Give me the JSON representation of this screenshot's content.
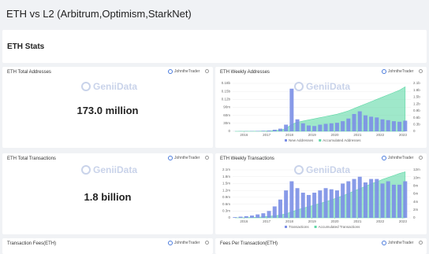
{
  "page_title": "ETH vs L2 (Arbitrum,Optimism,StarkNet)",
  "section_title": "ETH Stats",
  "watermark": "GeniiData",
  "stat_cards": [
    {
      "title": "ETH Total Addresses",
      "author": "JohntheTrader",
      "value": "173.0 million"
    },
    {
      "title": "ETH Total Transactions",
      "author": "JohntheTrader",
      "value": "1.8 billion"
    }
  ],
  "bottom_cards": [
    {
      "title": "Transaction Fees(ETH)",
      "author": "JohntheTrader"
    },
    {
      "title": "Fees Per Transaction(ETH)",
      "author": "JohntheTrader"
    }
  ],
  "chart_data": [
    {
      "type": "combo",
      "title": "ETH Weekly Addresses",
      "author": "JohntheTrader",
      "x": [
        2015.6,
        2015.85,
        2016.1,
        2016.35,
        2016.6,
        2016.85,
        2017.1,
        2017.35,
        2017.6,
        2017.85,
        2018.1,
        2018.35,
        2018.6,
        2018.85,
        2019.1,
        2019.35,
        2019.6,
        2019.85,
        2020.1,
        2020.35,
        2020.6,
        2020.85,
        2021.1,
        2021.35,
        2021.6,
        2021.85,
        2022.1,
        2022.35,
        2022.6,
        2022.85,
        2023.1
      ],
      "xlim": [
        2015.5,
        2023.35
      ],
      "xticks": [
        2016,
        2017,
        2018,
        2019,
        2020,
        2021,
        2022,
        2023
      ],
      "ylim": [
        0,
        180000000.0
      ],
      "yticks": [
        0,
        {
          "value": 30000000.0,
          "label": "30m"
        },
        {
          "value": 60000000.0,
          "label": "60m"
        },
        {
          "value": 90000000.0,
          "label": "90m"
        },
        {
          "value": 120000000.0,
          "label": "0.12b"
        },
        {
          "value": 150000000.0,
          "label": "0.15b"
        },
        {
          "value": 180000000.0,
          "label": "0.18b"
        }
      ],
      "y2lim": [
        0,
        2100000000.0
      ],
      "y2ticks": [
        0,
        {
          "value": 300000000.0,
          "label": "0.3b"
        },
        {
          "value": 600000000.0,
          "label": "0.6b"
        },
        {
          "value": 900000000.0,
          "label": "0.9b"
        },
        {
          "value": 1200000000.0,
          "label": "1.2b"
        },
        {
          "value": 1500000000.0,
          "label": "1.5b"
        },
        {
          "value": 1800000000.0,
          "label": "1.8b"
        },
        {
          "value": 2100000000.0,
          "label": "2.1b"
        }
      ],
      "series": [
        {
          "name": "New Addresses",
          "type": "bar",
          "color": "#7b8fe6",
          "values": [
            300000.0,
            500000.0,
            800000.0,
            1000000.0,
            1500000.0,
            2000000.0,
            3000000.0,
            6000000.0,
            10000000.0,
            25000000.0,
            160000000.0,
            45000000.0,
            30000000.0,
            22000000.0,
            20000000.0,
            25000000.0,
            28000000.0,
            30000000.0,
            32000000.0,
            38000000.0,
            48000000.0,
            65000000.0,
            75000000.0,
            60000000.0,
            55000000.0,
            52000000.0,
            45000000.0,
            42000000.0,
            38000000.0,
            36000000.0,
            40000000.0
          ]
        },
        {
          "name": "Accumulated Addresses",
          "type": "area",
          "axis": "y2",
          "color": "#5fd8a6",
          "values": [
            0,
            1000000.0,
            2000000.0,
            4000000.0,
            6000000.0,
            10000000.0,
            15000000.0,
            30000000.0,
            60000000.0,
            120000000.0,
            300000000.0,
            400000000.0,
            450000000.0,
            500000000.0,
            550000000.0,
            600000000.0,
            650000000.0,
            700000000.0,
            750000000.0,
            820000000.0,
            900000000.0,
            1000000000.0,
            1100000000.0,
            1200000000.0,
            1300000000.0,
            1400000000.0,
            1500000000.0,
            1600000000.0,
            1700000000.0,
            1800000000.0,
            1950000000.0
          ]
        }
      ]
    },
    {
      "type": "combo",
      "title": "ETH Weekly Transactions",
      "author": "JohntheTrader",
      "x": [
        2015.6,
        2015.85,
        2016.1,
        2016.35,
        2016.6,
        2016.85,
        2017.1,
        2017.35,
        2017.6,
        2017.85,
        2018.1,
        2018.35,
        2018.6,
        2018.85,
        2019.1,
        2019.35,
        2019.6,
        2019.85,
        2020.1,
        2020.35,
        2020.6,
        2020.85,
        2021.1,
        2021.35,
        2021.6,
        2021.85,
        2022.1,
        2022.35,
        2022.6,
        2022.85,
        2023.1
      ],
      "xlim": [
        2015.5,
        2023.35
      ],
      "xticks": [
        2016,
        2017,
        2018,
        2019,
        2020,
        2021,
        2022,
        2023
      ],
      "ylim": [
        0,
        2100000.0
      ],
      "yticks": [
        0,
        {
          "value": 300000.0,
          "label": "0.3m"
        },
        {
          "value": 600000.0,
          "label": "0.6m"
        },
        {
          "value": 900000.0,
          "label": "0.9m"
        },
        {
          "value": 1200000.0,
          "label": "1.2m"
        },
        {
          "value": 1500000.0,
          "label": "1.5m"
        },
        {
          "value": 1800000.0,
          "label": "1.8m"
        },
        {
          "value": 2100000.0,
          "label": "2.1m"
        }
      ],
      "y2lim": [
        0,
        12000000.0
      ],
      "y2ticks": [
        0,
        {
          "value": 2000000.0,
          "label": "2m"
        },
        {
          "value": 4000000.0,
          "label": "4m"
        },
        {
          "value": 6000000.0,
          "label": "6m"
        },
        {
          "value": 8000000.0,
          "label": "8m"
        },
        {
          "value": 10000000.0,
          "label": "10m"
        },
        {
          "value": 12000000.0,
          "label": "12m"
        }
      ],
      "series": [
        {
          "name": "Transactions",
          "type": "bar",
          "color": "#7b8fe6",
          "values": [
            30000.0,
            50000.0,
            70000.0,
            100000.0,
            150000.0,
            200000.0,
            300000.0,
            500000.0,
            800000.0,
            1200000.0,
            1600000.0,
            1300000.0,
            1100000.0,
            1000000.0,
            1100000.0,
            1200000.0,
            1300000.0,
            1250000.0,
            1200000.0,
            1500000.0,
            1600000.0,
            1700000.0,
            1800000.0,
            1550000.0,
            1700000.0,
            1700000.0,
            1500000.0,
            1600000.0,
            1450000.0,
            1450000.0,
            1600000.0
          ]
        },
        {
          "name": "Accumulated Transactions",
          "type": "area",
          "axis": "y2",
          "color": "#5fd8a6",
          "values": [
            0,
            20000.0,
            50000.0,
            100000.0,
            150000.0,
            250000.0,
            350000.0,
            500000.0,
            700000.0,
            1000000.0,
            1500000.0,
            2000000.0,
            2400000.0,
            2800000.0,
            3200000.0,
            3600000.0,
            4000000.0,
            4500000.0,
            5000000.0,
            5500000.0,
            6100000.0,
            6700000.0,
            7300000.0,
            7900000.0,
            8500000.0,
            9000000.0,
            9600000.0,
            10100000.0,
            10600000.0,
            11100000.0,
            11500000.0
          ]
        }
      ]
    }
  ]
}
